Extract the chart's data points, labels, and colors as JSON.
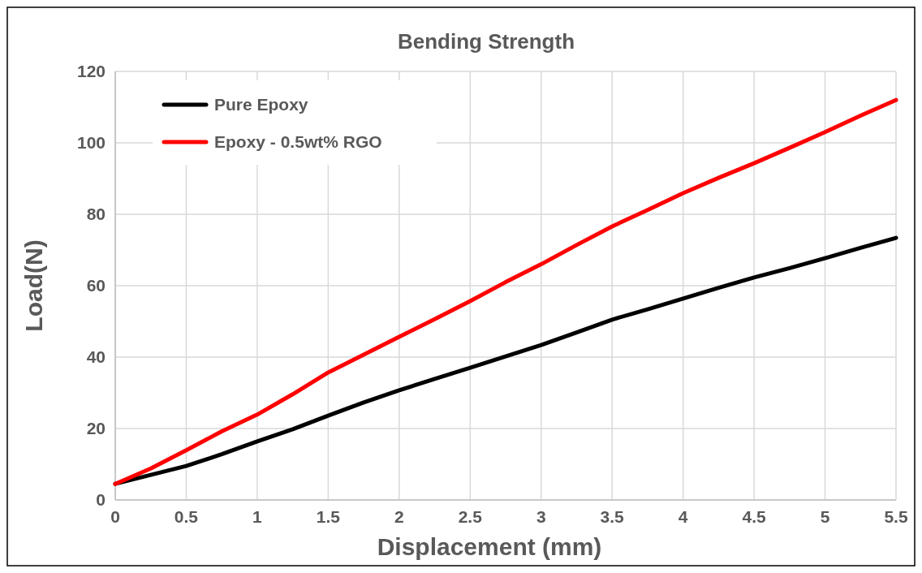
{
  "chart_data": {
    "type": "line",
    "title": "Bending Strength",
    "xlabel": "Displacement (mm)",
    "ylabel": "Load(N)",
    "xlim": [
      0,
      5.5
    ],
    "xticks": [
      0,
      0.5,
      1,
      1.5,
      2,
      2.5,
      3,
      3.5,
      4,
      4.5,
      5,
      5.5
    ],
    "ylim": [
      0,
      120
    ],
    "yticks": [
      0,
      20,
      40,
      60,
      80,
      100,
      120
    ],
    "grid": true,
    "legend": "top left",
    "line_style": "solid",
    "marker": "none",
    "x": [
      0,
      0.25,
      0.5,
      0.75,
      1,
      1.25,
      1.5,
      1.75,
      2,
      2.25,
      2.5,
      2.75,
      3,
      3.25,
      3.5,
      3.75,
      4,
      4.25,
      4.5,
      4.75,
      5,
      5.25,
      5.5
    ],
    "series": [
      {
        "name": "Pure Epoxy",
        "color": "#000000",
        "values": [
          4.5,
          7,
          9.5,
          12.8,
          16.4,
          19.8,
          23.6,
          27.3,
          30.7,
          33.9,
          37,
          40.2,
          43.4,
          46.9,
          50.5,
          53.4,
          56.4,
          59.4,
          62.3,
          64.9,
          67.7,
          70.6,
          73.4
        ]
      },
      {
        "name": "Epoxy - 0.5wt% RGO",
        "color": "#ff0000",
        "values": [
          4.5,
          8.8,
          13.9,
          19.2,
          23.9,
          29.6,
          35.7,
          40.7,
          45.7,
          50.6,
          55.7,
          61,
          66,
          71.4,
          76.6,
          81.2,
          85.9,
          90.2,
          94.3,
          98.6,
          103,
          107.6,
          112
        ]
      }
    ]
  }
}
